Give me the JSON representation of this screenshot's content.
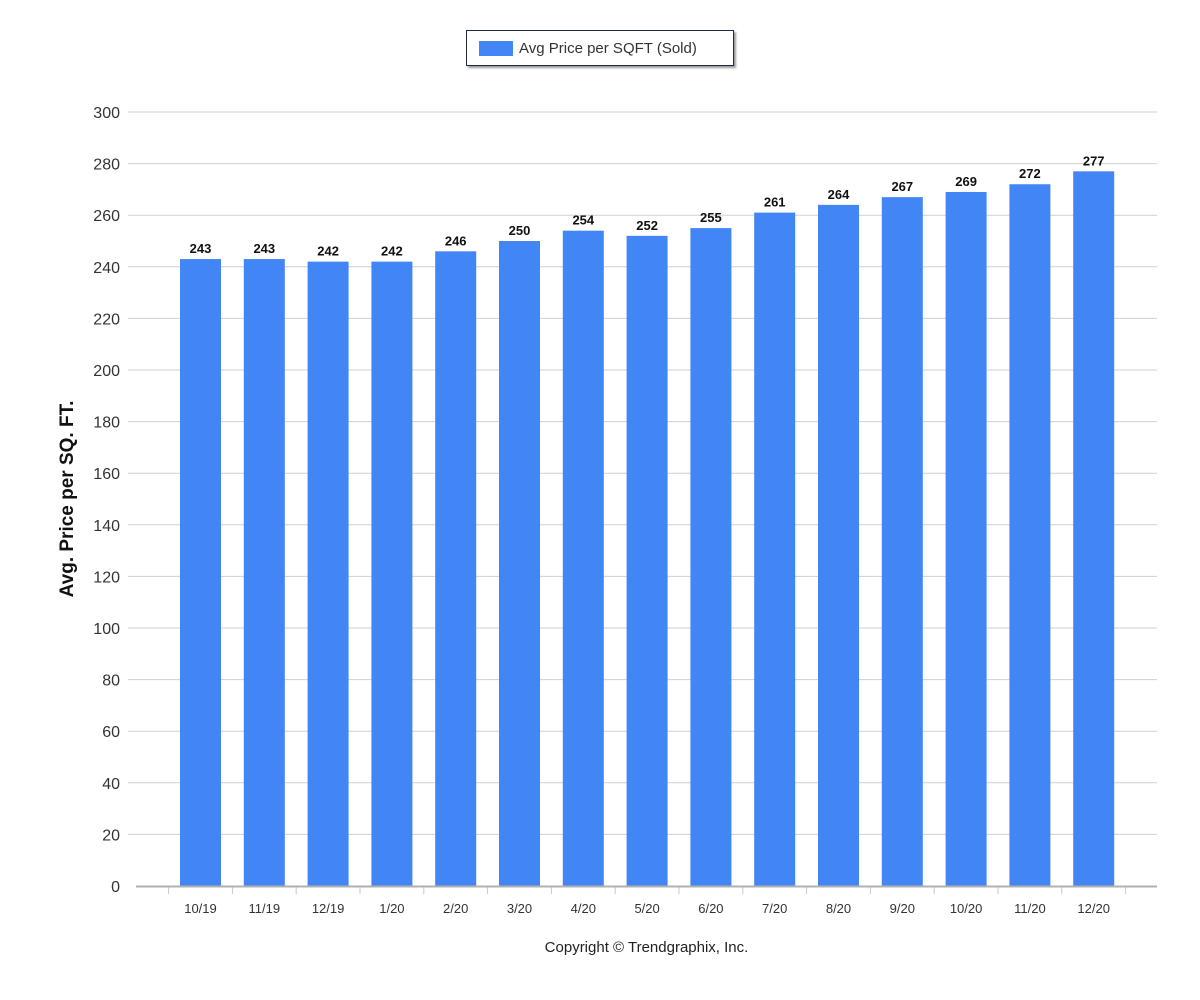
{
  "chart_data": {
    "type": "bar",
    "title": "",
    "xlabel": "",
    "ylabel": "Avg. Price per SQ. FT.",
    "ylim": [
      0,
      300
    ],
    "yticks": [
      0,
      20,
      40,
      60,
      80,
      100,
      120,
      140,
      160,
      180,
      200,
      220,
      240,
      260,
      280,
      300
    ],
    "categories": [
      "10/19",
      "11/19",
      "12/19",
      "1/20",
      "2/20",
      "3/20",
      "4/20",
      "5/20",
      "6/20",
      "7/20",
      "8/20",
      "9/20",
      "10/20",
      "11/20",
      "12/20"
    ],
    "series": [
      {
        "name": "Avg Price per SQFT (Sold)",
        "color": "#4285f4",
        "values": [
          243,
          243,
          242,
          242,
          246,
          250,
          254,
          252,
          255,
          261,
          264,
          267,
          269,
          272,
          277
        ]
      }
    ],
    "grid": true,
    "legend_position": "top-center",
    "data_labels": true
  },
  "footer": {
    "copyright": "Copyright © Trendgraphix, Inc."
  }
}
